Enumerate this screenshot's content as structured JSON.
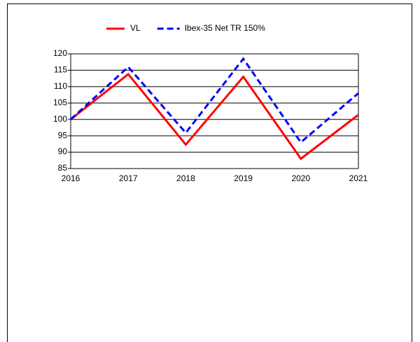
{
  "chart_data": {
    "type": "line",
    "categories": [
      "2016",
      "2017",
      "2018",
      "2019",
      "2020",
      "2021"
    ],
    "series": [
      {
        "name": "VL",
        "color": "#ff0000",
        "dash": false,
        "values": [
          100,
          113.8,
          92.3,
          113,
          88,
          101.4
        ]
      },
      {
        "name": "Ibex-35 Net TR 150%",
        "color": "#0000ff",
        "dash": true,
        "values": [
          100,
          116,
          95.9,
          118.5,
          93,
          108
        ]
      }
    ],
    "ylim": [
      85,
      120
    ],
    "yticks": [
      85,
      90,
      95,
      100,
      105,
      110,
      115,
      120
    ],
    "grid": true,
    "legend": "top"
  }
}
